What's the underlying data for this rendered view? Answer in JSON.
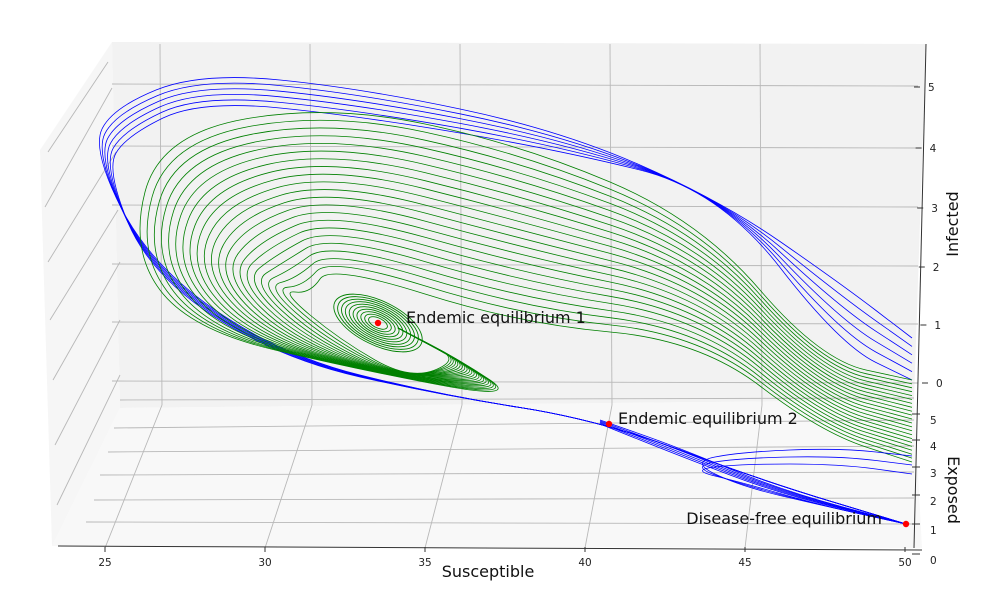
{
  "chart_data": {
    "type": "line",
    "projection": "3d",
    "title": "",
    "xlabel": "Susceptible",
    "ylabel": "Exposed",
    "zlabel": "Infected",
    "x_ticks": [
      25,
      30,
      35,
      40,
      45,
      50
    ],
    "y_ticks": [
      0,
      1,
      2,
      3,
      4,
      5
    ],
    "z_ticks": [
      0,
      1,
      2,
      3,
      4,
      5
    ],
    "xlim": [
      23.5,
      50.5
    ],
    "ylim": [
      0,
      5.5
    ],
    "zlim": [
      -0.5,
      5.5
    ],
    "grid": true,
    "trajectory_colors": {
      "outer": "#0000ff",
      "inner": "#008000",
      "points": "#ff0000"
    },
    "equilibria": [
      {
        "label": "Endemic equilibrium 1",
        "S": 33.5,
        "E": 1.0,
        "I": 1.5
      },
      {
        "label": "Endemic equilibrium 2",
        "S": 40.7,
        "E": 1.1,
        "I": 0.5
      },
      {
        "label": "Disease-free equilibrium",
        "S": 50.0,
        "E": 0.0,
        "I": 0.0
      }
    ],
    "trajectory_families": [
      {
        "color": "#0000ff",
        "count": 6,
        "I_start_min": 5.4,
        "I_start_max": 6.2,
        "end": "Disease-free equilibrium"
      },
      {
        "color": "#008000",
        "count": 22,
        "I_start_min": 1.2,
        "I_start_max": 5.3,
        "end": "Endemic equilibrium 1"
      },
      {
        "color": "#0000ff",
        "count": 3,
        "I_start_min": 0.1,
        "I_start_max": 0.6,
        "end": "Disease-free equilibrium"
      }
    ]
  }
}
